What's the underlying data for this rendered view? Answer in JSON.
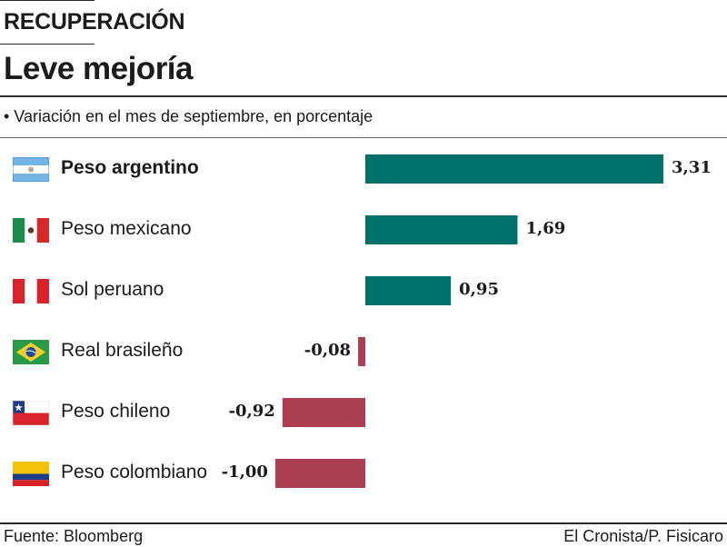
{
  "header": {
    "kicker": "RECUPERACIÓN",
    "title": "Leve mejoría",
    "subtitle": "• Variación en el mes de septiembre, en porcentaje"
  },
  "footer": {
    "source": "Fuente: Bloomberg",
    "credit": "El Cronista/P. Fisicaro"
  },
  "colors": {
    "positive": "#00716a",
    "negative": "#ab3e50"
  },
  "chart_data": {
    "type": "bar",
    "orientation": "horizontal",
    "title": "Leve mejoría",
    "subtitle": "Variación en el mes de septiembre, en porcentaje",
    "categories": [
      "Peso argentino",
      "Peso mexicano",
      "Sol peruano",
      "Real brasileño",
      "Peso chileno",
      "Peso colombiano"
    ],
    "flags": [
      "argentina-flag-icon",
      "mexico-flag-icon",
      "peru-flag-icon",
      "brazil-flag-icon",
      "chile-flag-icon",
      "colombia-flag-icon"
    ],
    "values": [
      3.31,
      1.69,
      0.95,
      -0.08,
      -0.92,
      -1.0
    ],
    "labels": [
      "3,31",
      "1,69",
      "0,95",
      "-0,08",
      "-0,92",
      "-1,00"
    ],
    "highlight": "Peso argentino",
    "xlabel": "",
    "ylabel": "",
    "grid": false,
    "legend": "none"
  }
}
